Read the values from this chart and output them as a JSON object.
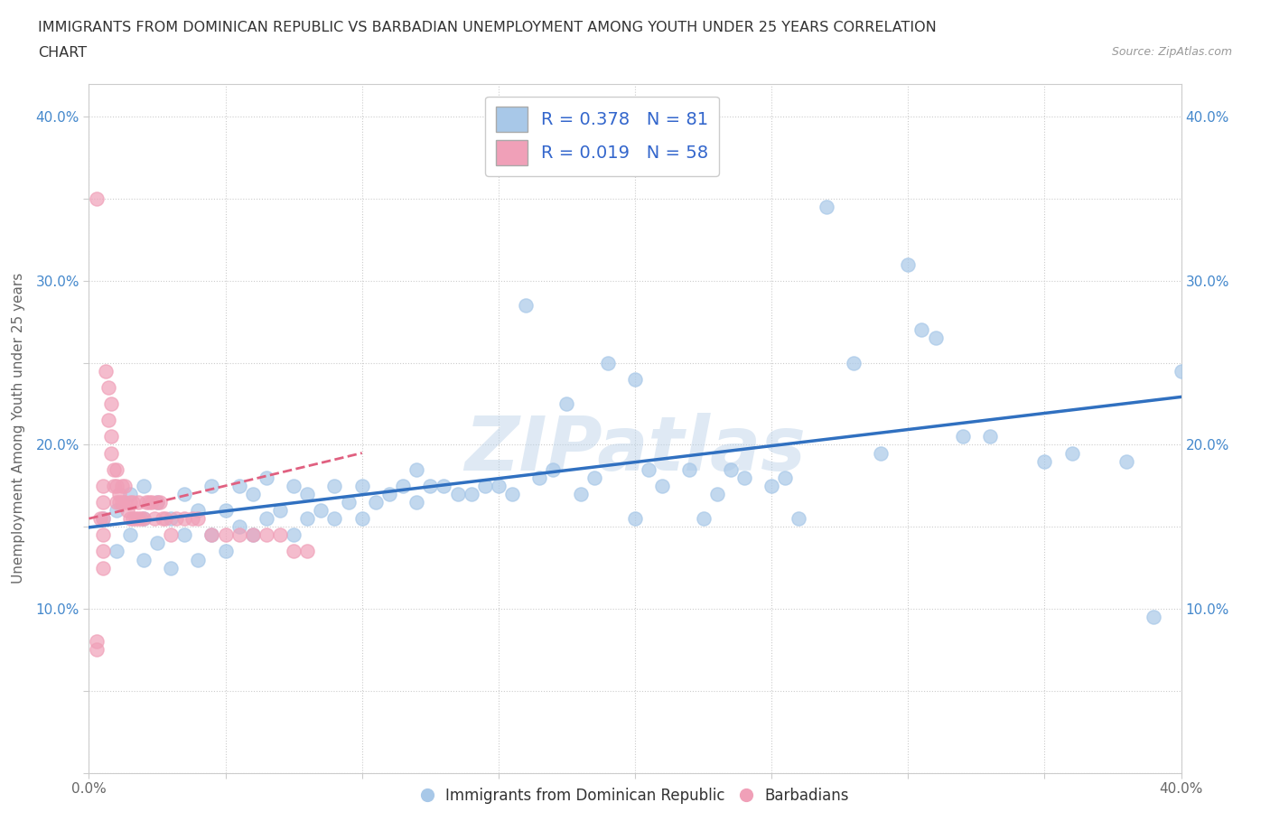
{
  "title_line1": "IMMIGRANTS FROM DOMINICAN REPUBLIC VS BARBADIAN UNEMPLOYMENT AMONG YOUTH UNDER 25 YEARS CORRELATION",
  "title_line2": "CHART",
  "source": "Source: ZipAtlas.com",
  "ylabel": "Unemployment Among Youth under 25 years",
  "xlim": [
    0.0,
    0.4
  ],
  "ylim": [
    0.0,
    0.42
  ],
  "x_ticks": [
    0.0,
    0.05,
    0.1,
    0.15,
    0.2,
    0.25,
    0.3,
    0.35,
    0.4
  ],
  "x_tick_labels": [
    "0.0%",
    "",
    "",
    "",
    "",
    "",
    "",
    "",
    "40.0%"
  ],
  "y_ticks": [
    0.0,
    0.05,
    0.1,
    0.15,
    0.2,
    0.25,
    0.3,
    0.35,
    0.4
  ],
  "y_tick_labels_left": [
    "",
    "",
    "10.0%",
    "",
    "20.0%",
    "",
    "30.0%",
    "",
    "40.0%"
  ],
  "y_tick_labels_right": [
    "",
    "",
    "10.0%",
    "",
    "20.0%",
    "",
    "30.0%",
    "",
    "40.0%"
  ],
  "blue_color": "#a8c8e8",
  "pink_color": "#f0a0b8",
  "blue_line_color": "#3070c0",
  "pink_line_color": "#e06080",
  "R_blue": 0.378,
  "N_blue": 81,
  "R_pink": 0.019,
  "N_pink": 58,
  "legend_label_blue": "Immigrants from Dominican Republic",
  "legend_label_pink": "Barbadians",
  "blue_scatter_x": [
    0.005,
    0.01,
    0.01,
    0.015,
    0.015,
    0.02,
    0.02,
    0.02,
    0.025,
    0.025,
    0.03,
    0.03,
    0.035,
    0.035,
    0.04,
    0.04,
    0.045,
    0.045,
    0.05,
    0.05,
    0.055,
    0.055,
    0.06,
    0.06,
    0.065,
    0.065,
    0.07,
    0.075,
    0.075,
    0.08,
    0.08,
    0.085,
    0.09,
    0.09,
    0.095,
    0.1,
    0.1,
    0.105,
    0.11,
    0.115,
    0.12,
    0.12,
    0.125,
    0.13,
    0.135,
    0.14,
    0.145,
    0.15,
    0.155,
    0.16,
    0.165,
    0.17,
    0.175,
    0.18,
    0.185,
    0.19,
    0.2,
    0.2,
    0.205,
    0.21,
    0.22,
    0.225,
    0.23,
    0.235,
    0.24,
    0.25,
    0.255,
    0.26,
    0.27,
    0.28,
    0.29,
    0.3,
    0.305,
    0.31,
    0.32,
    0.33,
    0.35,
    0.36,
    0.38,
    0.39,
    0.4
  ],
  "blue_scatter_y": [
    0.155,
    0.135,
    0.16,
    0.145,
    0.17,
    0.13,
    0.155,
    0.175,
    0.14,
    0.165,
    0.125,
    0.155,
    0.145,
    0.17,
    0.13,
    0.16,
    0.145,
    0.175,
    0.135,
    0.16,
    0.15,
    0.175,
    0.145,
    0.17,
    0.155,
    0.18,
    0.16,
    0.145,
    0.175,
    0.155,
    0.17,
    0.16,
    0.155,
    0.175,
    0.165,
    0.155,
    0.175,
    0.165,
    0.17,
    0.175,
    0.165,
    0.185,
    0.175,
    0.175,
    0.17,
    0.17,
    0.175,
    0.175,
    0.17,
    0.285,
    0.18,
    0.185,
    0.225,
    0.17,
    0.18,
    0.25,
    0.155,
    0.24,
    0.185,
    0.175,
    0.185,
    0.155,
    0.17,
    0.185,
    0.18,
    0.175,
    0.18,
    0.155,
    0.345,
    0.25,
    0.195,
    0.31,
    0.27,
    0.265,
    0.205,
    0.205,
    0.19,
    0.195,
    0.19,
    0.095,
    0.245
  ],
  "pink_scatter_x": [
    0.003,
    0.003,
    0.004,
    0.005,
    0.005,
    0.005,
    0.005,
    0.005,
    0.005,
    0.006,
    0.007,
    0.007,
    0.008,
    0.008,
    0.008,
    0.009,
    0.009,
    0.01,
    0.01,
    0.01,
    0.011,
    0.011,
    0.012,
    0.012,
    0.013,
    0.013,
    0.014,
    0.015,
    0.015,
    0.016,
    0.016,
    0.017,
    0.018,
    0.018,
    0.019,
    0.02,
    0.021,
    0.022,
    0.023,
    0.024,
    0.025,
    0.026,
    0.027,
    0.028,
    0.03,
    0.032,
    0.035,
    0.038,
    0.04,
    0.045,
    0.05,
    0.055,
    0.06,
    0.065,
    0.07,
    0.075,
    0.08,
    0.003
  ],
  "pink_scatter_y": [
    0.35,
    0.075,
    0.155,
    0.165,
    0.155,
    0.145,
    0.135,
    0.125,
    0.175,
    0.245,
    0.215,
    0.235,
    0.225,
    0.205,
    0.195,
    0.185,
    0.175,
    0.185,
    0.165,
    0.175,
    0.17,
    0.165,
    0.165,
    0.175,
    0.165,
    0.175,
    0.16,
    0.155,
    0.165,
    0.155,
    0.165,
    0.155,
    0.155,
    0.165,
    0.155,
    0.155,
    0.165,
    0.165,
    0.165,
    0.155,
    0.165,
    0.165,
    0.155,
    0.155,
    0.145,
    0.155,
    0.155,
    0.155,
    0.155,
    0.145,
    0.145,
    0.145,
    0.145,
    0.145,
    0.145,
    0.135,
    0.135,
    0.08
  ]
}
